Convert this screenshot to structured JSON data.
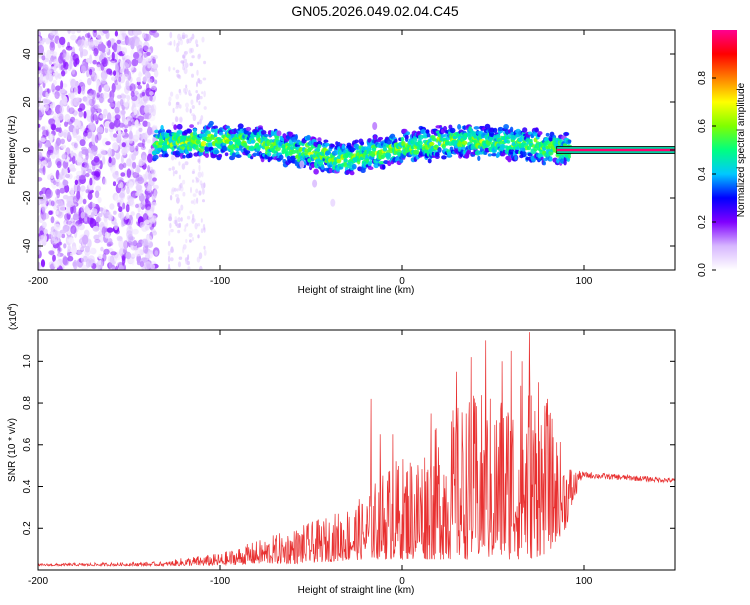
{
  "title": "GN05.2026.049.02.04.C45",
  "chart_data": [
    {
      "type": "heatmap",
      "name": "spectrogram",
      "xlabel": "Height of straight line (km)",
      "ylabel": "Frequency (Hz)",
      "xlim": [
        -200,
        150
      ],
      "ylim": [
        -50,
        50
      ],
      "xticks": [
        -200,
        -100,
        0,
        100
      ],
      "xtick_labels": [
        "-200",
        "-100",
        "0",
        "100"
      ],
      "yticks": [
        -40,
        -20,
        0,
        20,
        40
      ],
      "ytick_labels": [
        "-40",
        "-20",
        "0",
        "20",
        "40"
      ],
      "colorbar": {
        "label": "Normalized spectral amplitude",
        "range": [
          0,
          1
        ],
        "ticks": [
          0.0,
          0.2,
          0.4,
          0.6,
          0.8
        ],
        "tick_labels": [
          "0.0",
          "0.2",
          "0.4",
          "0.6",
          "0.8"
        ],
        "colors": [
          "#ffffff",
          "#d7b7ff",
          "#8000ff",
          "#0000ff",
          "#00c8ff",
          "#00ff80",
          "#80ff00",
          "#ffff00",
          "#ff8000",
          "#ff0000",
          "#ff0090"
        ]
      },
      "ridge": {
        "x": [
          -135,
          -120,
          -100,
          -80,
          -60,
          -45,
          -35,
          -25,
          -15,
          -5,
          0,
          10,
          20,
          30,
          40,
          50,
          60,
          70,
          80,
          90,
          100,
          150
        ],
        "y": [
          3,
          3,
          4,
          3,
          0,
          -2,
          -4,
          -3,
          -1,
          0,
          1,
          2,
          3,
          4,
          4,
          3,
          3,
          2,
          1,
          0,
          0,
          0
        ]
      },
      "scatter_region_x": [
        -200,
        -135
      ]
    },
    {
      "type": "line",
      "name": "snr",
      "color": "#e83030",
      "xlabel": "Height of straight line (km)",
      "ylabel": "SNR (10 * v/v)",
      "multiplier": "(x10",
      "multiplier_exp": "4",
      "multiplier_close": ")",
      "xlim": [
        -200,
        150
      ],
      "ylim": [
        0,
        1.15
      ],
      "xticks": [
        -200,
        -100,
        0,
        100
      ],
      "xtick_labels": [
        "-200",
        "-100",
        "0",
        "100"
      ],
      "yticks": [
        0.2,
        0.4,
        0.6,
        0.8,
        1.0
      ],
      "ytick_labels": [
        "0.2",
        "0.4",
        "0.6",
        "0.8",
        "1.0"
      ],
      "envelope": {
        "x": [
          -200,
          -130,
          -120,
          -100,
          -80,
          -60,
          -40,
          -20,
          -10,
          0,
          10,
          20,
          30,
          40,
          50,
          60,
          70,
          80,
          90,
          95,
          100,
          150
        ],
        "low": [
          0.02,
          0.02,
          0.02,
          0.02,
          0.03,
          0.03,
          0.04,
          0.05,
          0.05,
          0.05,
          0.05,
          0.05,
          0.05,
          0.05,
          0.05,
          0.05,
          0.05,
          0.08,
          0.2,
          0.35,
          0.42,
          0.4
        ],
        "high": [
          0.03,
          0.04,
          0.06,
          0.08,
          0.14,
          0.2,
          0.26,
          0.36,
          0.5,
          0.55,
          0.6,
          0.7,
          0.8,
          0.85,
          0.85,
          0.9,
          0.95,
          0.8,
          0.55,
          0.48,
          0.47,
          0.44
        ]
      },
      "peaks": {
        "x": [
          -17,
          -12,
          -5,
          16,
          30,
          38,
          46,
          55,
          60,
          66,
          70,
          75,
          80
        ],
        "y": [
          0.82,
          0.65,
          0.65,
          0.75,
          0.95,
          1.02,
          1.1,
          1.0,
          1.05,
          1.0,
          1.14,
          0.9,
          0.82
        ]
      }
    }
  ]
}
